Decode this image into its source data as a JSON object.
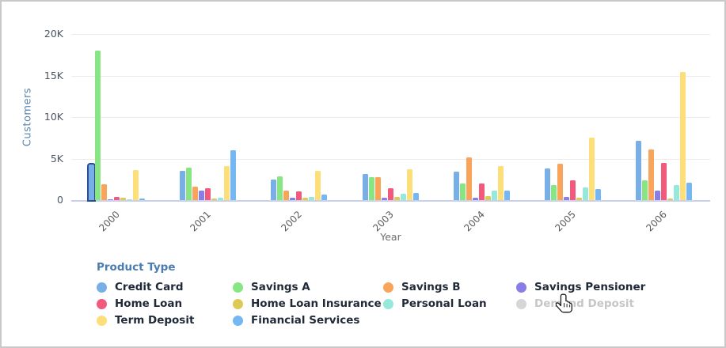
{
  "widget": {
    "background": "#ffffff",
    "border_color": "#c9c9c9"
  },
  "chart_data": {
    "type": "bar",
    "title": "",
    "xlabel": "Year",
    "ylabel": "Customers",
    "ylim": [
      0,
      20000
    ],
    "grid": true,
    "yticks": [
      {
        "value": 0,
        "label": "0"
      },
      {
        "value": 5000,
        "label": "5K"
      },
      {
        "value": 10000,
        "label": "10K"
      },
      {
        "value": 15000,
        "label": "15K"
      },
      {
        "value": 20000,
        "label": "20K"
      }
    ],
    "categories": [
      "2000",
      "2001",
      "2002",
      "2003",
      "2004",
      "2005",
      "2006"
    ],
    "series": [
      {
        "name": "Credit Card",
        "color": "#79afe7",
        "disabled": false,
        "values": [
          4300,
          3500,
          2500,
          3100,
          3450,
          3800,
          7100
        ]
      },
      {
        "name": "Savings A",
        "color": "#88e583",
        "disabled": false,
        "values": [
          18000,
          3950,
          2900,
          2800,
          2000,
          1850,
          2400
        ]
      },
      {
        "name": "Savings B",
        "color": "#f9a45b",
        "disabled": false,
        "values": [
          1900,
          1600,
          1150,
          2800,
          5150,
          4400,
          6100
        ]
      },
      {
        "name": "Savings Pensioner",
        "color": "#887ee6",
        "disabled": false,
        "values": [
          50,
          1100,
          250,
          300,
          300,
          350,
          1100
        ]
      },
      {
        "name": "Home Loan",
        "color": "#f1597d",
        "disabled": false,
        "values": [
          400,
          1400,
          1000,
          1450,
          2000,
          2400,
          4500
        ]
      },
      {
        "name": "Home Loan Insurance",
        "color": "#ddca55",
        "disabled": false,
        "values": [
          250,
          200,
          250,
          350,
          500,
          250,
          150
        ]
      },
      {
        "name": "Personal Loan",
        "color": "#96e8da",
        "disabled": false,
        "values": [
          50,
          250,
          350,
          800,
          1100,
          1550,
          1850
        ]
      },
      {
        "name": "Demand Deposit",
        "color": "#d6d6d6",
        "disabled": true,
        "values": [
          0,
          0,
          0,
          0,
          0,
          0,
          0
        ]
      },
      {
        "name": "Term Deposit",
        "color": "#fcdf79",
        "disabled": false,
        "values": [
          3600,
          4100,
          3500,
          3750,
          4100,
          7500,
          15400
        ]
      },
      {
        "name": "Financial Services",
        "color": "#74b7f3",
        "disabled": false,
        "values": [
          150,
          6000,
          650,
          900,
          1100,
          1300,
          2100
        ]
      }
    ],
    "highlight": {
      "series": "Credit Card",
      "category": "2000",
      "border_color": "#2b4d92"
    },
    "legend": {
      "title": "Product Type",
      "position": "bottom",
      "columns": 4
    }
  },
  "cursor": {
    "icon": "hand-pointer-icon"
  }
}
